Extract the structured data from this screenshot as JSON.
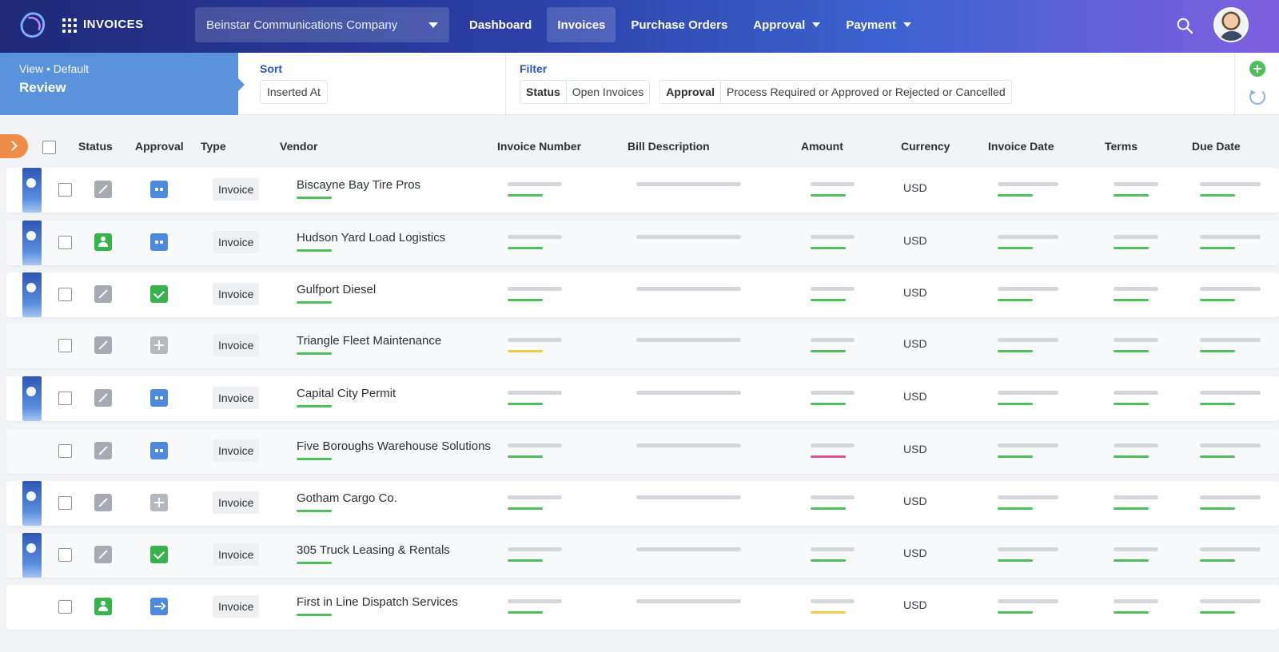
{
  "app": {
    "title": "INVOICES"
  },
  "company": {
    "selected": "Beinstar Communications Company"
  },
  "nav": {
    "items": [
      {
        "label": "Dashboard",
        "active": false,
        "dropdown": false
      },
      {
        "label": "Invoices",
        "active": true,
        "dropdown": false
      },
      {
        "label": "Purchase Orders",
        "active": false,
        "dropdown": false
      },
      {
        "label": "Approval",
        "active": false,
        "dropdown": true
      },
      {
        "label": "Payment",
        "active": false,
        "dropdown": true
      }
    ]
  },
  "toolbar": {
    "view_label": "View • Default",
    "view_name": "Review",
    "sort_title": "Sort",
    "sort_value": "Inserted At",
    "filter_title": "Filter",
    "filters": [
      {
        "key": "Status",
        "value": "Open Invoices"
      },
      {
        "key": "Approval",
        "value": "Process Required or Approved or Rejected or Cancelled"
      }
    ]
  },
  "table": {
    "columns": {
      "status": "Status",
      "approval": "Approval",
      "type": "Type",
      "vendor": "Vendor",
      "invoice_number": "Invoice Number",
      "bill_description": "Bill Description",
      "amount": "Amount",
      "currency": "Currency",
      "invoice_date": "Invoice Date",
      "terms": "Terms",
      "due_date": "Due Date"
    },
    "rows": [
      {
        "flag": true,
        "status": "draft",
        "approval": "pending",
        "type": "Invoice",
        "vendor": "Biscayne Bay Tire Pros",
        "currency": "USD",
        "amount_bar": "#4fbf5a",
        "inv_bar": "#4fbf5a"
      },
      {
        "flag": true,
        "status": "user",
        "approval": "pending",
        "type": "Invoice",
        "vendor": "Hudson Yard Load Logistics",
        "currency": "USD",
        "amount_bar": "#4fbf5a",
        "inv_bar": "#4fbf5a"
      },
      {
        "flag": true,
        "status": "draft",
        "approval": "approved",
        "type": "Invoice",
        "vendor": "Gulfport Diesel",
        "currency": "USD",
        "amount_bar": "#4fbf5a",
        "inv_bar": "#4fbf5a"
      },
      {
        "flag": false,
        "status": "draft",
        "approval": "add",
        "type": "Invoice",
        "vendor": "Triangle Fleet Maintenance",
        "currency": "USD",
        "amount_bar": "#4fbf5a",
        "inv_bar": "#f2c84b"
      },
      {
        "flag": true,
        "status": "draft",
        "approval": "pending",
        "type": "Invoice",
        "vendor": "Capital City Permit",
        "currency": "USD",
        "amount_bar": "#4fbf5a",
        "inv_bar": "#4fbf5a"
      },
      {
        "flag": false,
        "status": "draft",
        "approval": "pending",
        "type": "Invoice",
        "vendor": "Five Boroughs Warehouse Solutions",
        "currency": "USD",
        "amount_bar": "#e0509a",
        "inv_bar": "#4fbf5a"
      },
      {
        "flag": true,
        "status": "draft",
        "approval": "add",
        "type": "Invoice",
        "vendor": "Gotham Cargo Co.",
        "currency": "USD",
        "amount_bar": "#4fbf5a",
        "inv_bar": "#4fbf5a"
      },
      {
        "flag": true,
        "status": "draft",
        "approval": "approved",
        "type": "Invoice",
        "vendor": "305 Truck Leasing & Rentals",
        "currency": "USD",
        "amount_bar": "#4fbf5a",
        "inv_bar": "#4fbf5a"
      },
      {
        "flag": false,
        "status": "user",
        "approval": "forward",
        "type": "Invoice",
        "vendor": "First in Line Dispatch Services",
        "currency": "USD",
        "amount_bar": "#f2c84b",
        "inv_bar": "#4fbf5a"
      }
    ]
  },
  "colors": {
    "accent": "#5b92dc",
    "success": "#4fbf5a",
    "warning": "#f2c84b",
    "danger": "#e0509a",
    "expand_tab": "#f08c4a"
  },
  "icons": [
    "logo-icon",
    "apps-grid-icon",
    "search-icon",
    "avatar",
    "add-circle-icon",
    "refresh-icon",
    "chevron-right-icon"
  ]
}
